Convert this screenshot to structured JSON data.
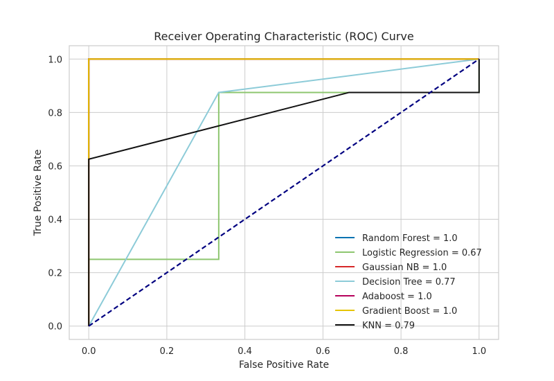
{
  "chart_data": {
    "type": "line",
    "title": "Receiver Operating Characteristic (ROC) Curve",
    "xlabel": "False Positive Rate",
    "ylabel": "True Positive Rate",
    "xlim": [
      -0.05,
      1.05
    ],
    "ylim": [
      -0.05,
      1.05
    ],
    "xticks": [
      0.0,
      0.2,
      0.4,
      0.6,
      0.8,
      1.0
    ],
    "yticks": [
      0.0,
      0.2,
      0.4,
      0.6,
      0.8,
      1.0
    ],
    "xtick_labels": [
      "0.0",
      "0.2",
      "0.4",
      "0.6",
      "0.8",
      "1.0"
    ],
    "ytick_labels": [
      "0.0",
      "0.2",
      "0.4",
      "0.6",
      "0.8",
      "1.0"
    ],
    "grid": true,
    "legend_position": "lower-right",
    "series": [
      {
        "name": "Random Forest = 1.0",
        "color": "#0072b2",
        "x": [
          0,
          0,
          0,
          1
        ],
        "y": [
          0,
          0.625,
          1.0,
          1.0
        ]
      },
      {
        "name": "Logistic Regression = 0.67",
        "color": "#8dc66f",
        "x": [
          0,
          0,
          0.333,
          0.333,
          0.667,
          0.667,
          1.0,
          1.0
        ],
        "y": [
          0,
          0.25,
          0.25,
          0.875,
          0.875,
          0.875,
          0.875,
          1.0
        ]
      },
      {
        "name": "Gaussian NB = 1.0",
        "color": "#d62728",
        "x": [
          0,
          0,
          0,
          1
        ],
        "y": [
          0,
          0.625,
          1.0,
          1.0
        ]
      },
      {
        "name": "Decision Tree = 0.77",
        "color": "#8ccbd8",
        "x": [
          0,
          0.333,
          1.0
        ],
        "y": [
          0,
          0.875,
          1.0
        ]
      },
      {
        "name": "Adaboost = 1.0",
        "color": "#b5005b",
        "x": [
          0,
          0,
          0,
          1
        ],
        "y": [
          0,
          0.625,
          1.0,
          1.0
        ]
      },
      {
        "name": "Gradient Boost = 1.0",
        "color": "#e6c400",
        "x": [
          0,
          0,
          0,
          1
        ],
        "y": [
          0,
          0.625,
          1.0,
          1.0
        ]
      },
      {
        "name": "KNN = 0.79",
        "color": "#111111",
        "x": [
          0,
          0,
          0.667,
          1.0,
          1.0
        ],
        "y": [
          0,
          0.625,
          0.875,
          0.875,
          1.0
        ]
      }
    ],
    "reference_line": {
      "color": "#000080",
      "style": "dashed",
      "x": [
        0,
        1
      ],
      "y": [
        0,
        1
      ]
    }
  }
}
